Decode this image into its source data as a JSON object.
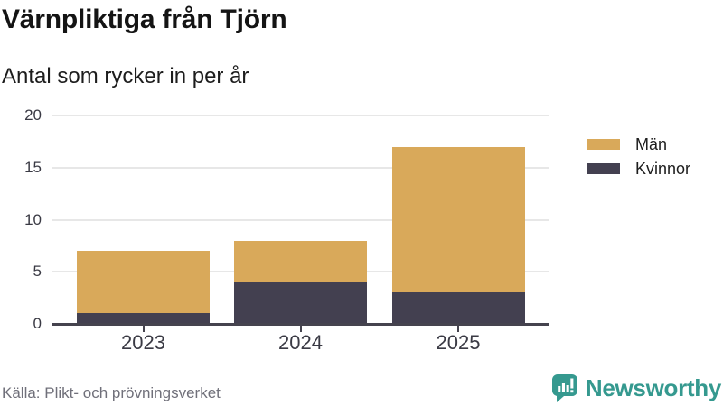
{
  "header": {
    "title": "Värnpliktiga från Tjörn",
    "subtitle": "Antal som rycker in per år"
  },
  "chart_data": {
    "type": "bar",
    "stacked": true,
    "title": "Värnpliktiga från Tjörn",
    "subtitle": "Antal som rycker in per år",
    "categories": [
      "2023",
      "2024",
      "2025"
    ],
    "series": [
      {
        "name": "Män",
        "color": "#d9a95a",
        "values": [
          6,
          4,
          14
        ]
      },
      {
        "name": "Kvinnor",
        "color": "#434050",
        "values": [
          1,
          4,
          3
        ]
      }
    ],
    "stack_order_bottom_to_top": [
      "Kvinnor",
      "Män"
    ],
    "totals": [
      7,
      8,
      17
    ],
    "xlabel": "",
    "ylabel": "",
    "ylim": [
      0,
      20
    ],
    "yticks": [
      0,
      5,
      10,
      15,
      20
    ],
    "grid": true,
    "legend_position": "right",
    "colors": {
      "grid": "#e7e7e7",
      "axis": "#45434e",
      "tick_labels": "#3a3a44"
    }
  },
  "footer": {
    "source": "Källa: Plikt- och prövningsverket",
    "brand": "Newsworthy",
    "brand_color": "#35998f"
  }
}
